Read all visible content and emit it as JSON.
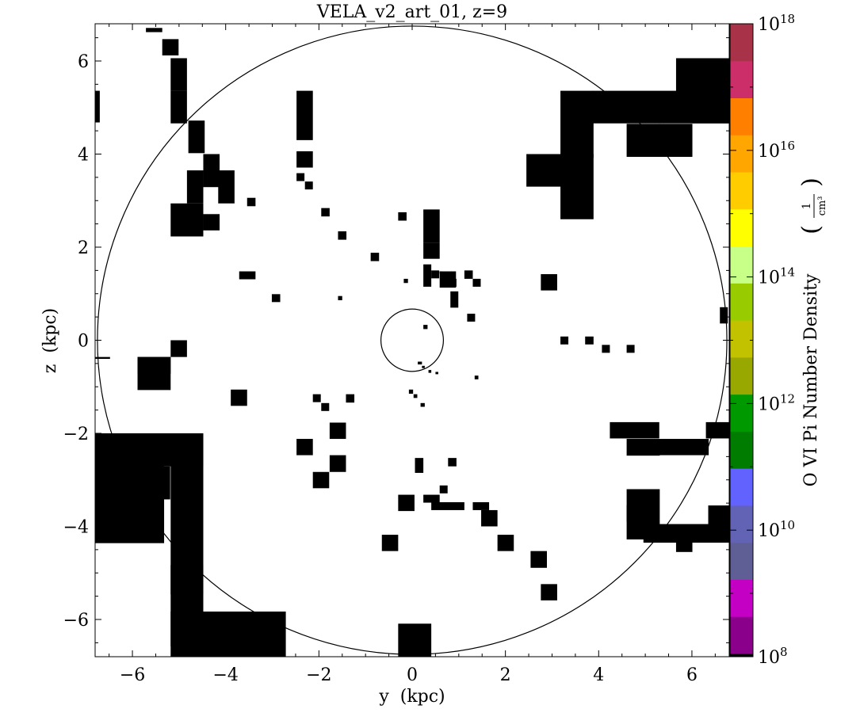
{
  "chart_data": {
    "type": "heatmap",
    "title": "VELA_v2_art_01, z=9",
    "xlabel": "y  (kpc)",
    "ylabel": "z  (kpc)",
    "xlim": [
      -6.8,
      6.8
    ],
    "ylim": [
      -6.8,
      6.8
    ],
    "xticks": [
      -6,
      -4,
      -2,
      0,
      2,
      4,
      6
    ],
    "yticks": [
      -6,
      -4,
      -2,
      0,
      2,
      4,
      6
    ],
    "xtick_labels": [
      "−6",
      "−4",
      "−2",
      "0",
      "2",
      "4",
      "6"
    ],
    "ytick_labels": [
      "−6",
      "−4",
      "−2",
      "0",
      "2",
      "4",
      "6"
    ],
    "colorbar": {
      "label": "O VI Pi Number Density",
      "unit_label": "1/cm³",
      "scale": "log",
      "range": [
        100000000.0,
        1e+18
      ],
      "tick_labels": [
        {
          "base": "10",
          "exp": "8",
          "value": 8
        },
        {
          "base": "10",
          "exp": "10",
          "value": 10
        },
        {
          "base": "10",
          "exp": "12",
          "value": 12
        },
        {
          "base": "10",
          "exp": "14",
          "value": 14
        },
        {
          "base": "10",
          "exp": "16",
          "value": 16
        },
        {
          "base": "10",
          "exp": "18",
          "value": 18
        }
      ],
      "colors": [
        "#000000",
        "#8a008a",
        "#c400c4",
        "#5f5f95",
        "#6363b5",
        "#6262ff",
        "#007d00",
        "#009900",
        "#99a800",
        "#c2c200",
        "#99cc00",
        "#c8ff88",
        "#ffff00",
        "#ffcc00",
        "#ffa600",
        "#ff7f00",
        "#cc2e6a",
        "#a83349"
      ]
    },
    "circles": [
      {
        "name": "outer",
        "cx": 0,
        "cy": 0,
        "r": 6.75
      },
      {
        "name": "inner",
        "cx": 0,
        "cy": 0,
        "r": 0.67
      }
    ],
    "cells": [
      [
        -5.71,
        6.71,
        0.35,
        0.09
      ],
      [
        -5.36,
        6.47,
        0.35,
        0.35
      ],
      [
        -5.18,
        6.06,
        0.35,
        0.7
      ],
      [
        -6.8,
        5.36,
        0.1,
        0.68
      ],
      [
        -5.18,
        5.36,
        0.35,
        0.7
      ],
      [
        -4.8,
        4.72,
        0.35,
        0.7
      ],
      [
        -4.48,
        4.0,
        0.35,
        0.71
      ],
      [
        -4.16,
        3.65,
        0.35,
        0.71
      ],
      [
        -4.83,
        3.65,
        0.35,
        0.71
      ],
      [
        -5.18,
        2.94,
        0.7,
        0.71
      ],
      [
        -4.48,
        2.71,
        0.35,
        0.35
      ],
      [
        -2.48,
        4.06,
        0.35,
        0.35
      ],
      [
        -2.48,
        5.36,
        0.35,
        1.06
      ],
      [
        -2.48,
        3.59,
        0.17,
        0.17
      ],
      [
        -2.3,
        3.41,
        0.17,
        0.17
      ],
      [
        -3.54,
        3.06,
        0.18,
        0.18
      ],
      [
        -1.95,
        2.84,
        0.18,
        0.18
      ],
      [
        -1.59,
        2.34,
        0.18,
        0.18
      ],
      [
        -0.89,
        1.88,
        0.18,
        0.18
      ],
      [
        0.24,
        2.81,
        0.35,
        0.71
      ],
      [
        0.24,
        2.1,
        0.35,
        0.35
      ],
      [
        0.24,
        1.63,
        0.17,
        0.48
      ],
      [
        0.59,
        1.48,
        0.35,
        0.35
      ],
      [
        1.12,
        1.5,
        0.18,
        0.18
      ],
      [
        -3.71,
        1.48,
        0.35,
        0.17
      ],
      [
        -3.01,
        0.99,
        0.18,
        0.17
      ],
      [
        -1.59,
        0.95,
        0.09,
        0.09
      ],
      [
        -0.18,
        1.32,
        0.09,
        0.09
      ],
      [
        -0.3,
        2.75,
        0.18,
        0.18
      ],
      [
        0.59,
        1.48,
        0.05,
        0.05
      ],
      [
        0.59,
        1.48,
        0.05,
        0.05
      ],
      [
        0.41,
        1.5,
        0.17,
        0.17
      ],
      [
        0.77,
        1.32,
        0.18,
        0.17
      ],
      [
        1.3,
        1.32,
        0.17,
        0.17
      ],
      [
        2.76,
        1.42,
        0.35,
        0.35
      ],
      [
        0.82,
        1.05,
        0.17,
        0.35
      ],
      [
        1.18,
        0.57,
        0.17,
        0.17
      ],
      [
        0.24,
        0.33,
        0.09,
        0.09
      ],
      [
        6.6,
        0.71,
        0.17,
        0.35
      ],
      [
        3.18,
        0.08,
        0.17,
        0.17
      ],
      [
        3.71,
        0.08,
        0.18,
        0.17
      ],
      [
        4.07,
        -0.1,
        0.17,
        0.17
      ],
      [
        4.6,
        -0.1,
        0.17,
        0.17
      ],
      [
        0.12,
        -0.46,
        0.09,
        0.06
      ],
      [
        0.21,
        -0.55,
        0.06,
        0.05
      ],
      [
        0.35,
        -0.64,
        0.06,
        0.06
      ],
      [
        0.5,
        -0.68,
        0.06,
        0.05
      ],
      [
        1.34,
        -0.76,
        0.08,
        0.08
      ],
      [
        -0.07,
        -1.06,
        0.09,
        0.09
      ],
      [
        0.03,
        -1.16,
        0.08,
        0.08
      ],
      [
        0.18,
        -1.35,
        0.09,
        0.08
      ],
      [
        -3.89,
        -1.06,
        0.35,
        0.35
      ],
      [
        -2.13,
        -1.16,
        0.17,
        0.17
      ],
      [
        -1.95,
        -1.35,
        0.17,
        0.17
      ],
      [
        -1.42,
        -1.16,
        0.18,
        0.18
      ],
      [
        -1.77,
        -1.77,
        0.35,
        0.35
      ],
      [
        -2.48,
        -2.12,
        0.35,
        0.35
      ],
      [
        -1.77,
        -2.47,
        0.35,
        0.36
      ],
      [
        -2.13,
        -2.83,
        0.35,
        0.35
      ],
      [
        0.06,
        -2.53,
        0.18,
        0.32
      ],
      [
        0.77,
        -2.53,
        0.18,
        0.18
      ],
      [
        0.59,
        -3.12,
        0.17,
        0.17
      ],
      [
        -0.3,
        -3.32,
        0.35,
        0.35
      ],
      [
        0.24,
        -3.32,
        0.35,
        0.17
      ],
      [
        0.41,
        -3.48,
        0.71,
        0.17
      ],
      [
        1.3,
        -3.48,
        0.35,
        0.17
      ],
      [
        1.48,
        -3.65,
        0.35,
        0.35
      ],
      [
        1.83,
        -4.18,
        0.35,
        0.35
      ],
      [
        -0.65,
        -4.18,
        0.35,
        0.35
      ],
      [
        2.54,
        -4.53,
        0.35,
        0.36
      ],
      [
        2.76,
        -5.24,
        0.35,
        0.35
      ],
      [
        6.3,
        -1.76,
        0.5,
        0.35
      ],
      [
        4.24,
        -1.76,
        1.06,
        0.35
      ],
      [
        4.6,
        -2.12,
        0.71,
        0.36
      ],
      [
        5.3,
        -2.12,
        1.06,
        0.35
      ],
      [
        4.6,
        -3.2,
        0.71,
        1.08
      ],
      [
        4.6,
        -3.55,
        0.35,
        0.35
      ],
      [
        6.35,
        -3.55,
        0.45,
        0.71
      ],
      [
        4.96,
        -3.95,
        1.84,
        0.4
      ],
      [
        5.66,
        -4.25,
        0.35,
        0.3
      ],
      [
        -6.8,
        -2.0,
        1.48,
        2.36
      ],
      [
        -6.8,
        -0.36,
        0.32,
        0.04
      ],
      [
        -5.89,
        -0.36,
        0.71,
        0.36
      ],
      [
        -5.89,
        -0.36,
        0.71,
        0.71
      ],
      [
        -5.18,
        0.0,
        0.35,
        0.36
      ],
      [
        -5.89,
        -2.71,
        0.7,
        0.71
      ],
      [
        -5.89,
        -2.0,
        1.41,
        0.71
      ],
      [
        -5.18,
        -2.0,
        0.7,
        4.2
      ],
      [
        -5.18,
        -4.83,
        0.7,
        0.63
      ],
      [
        -5.18,
        -5.83,
        2.47,
        1.0
      ],
      [
        -5.18,
        -6.2,
        1.41,
        0.38
      ],
      [
        -2.48,
        -6.8,
        1.41,
        1.06
      ],
      [
        -1.08,
        -6.8,
        0.71,
        0.71
      ],
      [
        -0.3,
        -6.8,
        0.71,
        0.71
      ],
      [
        -0.3,
        -6.09,
        0.71,
        0.71
      ],
      [
        0.41,
        -6.8,
        0.71,
        0.71
      ],
      [
        1.12,
        -6.8,
        0.35,
        0.35
      ],
      [
        6.8,
        6.8,
        0,
        0
      ],
      [
        2.45,
        4.0,
        1.41,
        0.7
      ],
      [
        3.18,
        4.0,
        0.71,
        1.4
      ],
      [
        3.18,
        5.36,
        0.71,
        1.44
      ],
      [
        3.88,
        5.36,
        2.92,
        0.7
      ],
      [
        4.6,
        4.65,
        0.71,
        0.71
      ],
      [
        5.3,
        4.65,
        0.71,
        0.71
      ],
      [
        5.66,
        5.36,
        1.14,
        0.0
      ],
      [
        5.66,
        6.06,
        1.14,
        0.74
      ],
      [
        6.01,
        5.36,
        0.79,
        0.7
      ],
      [
        6.67,
        5.71,
        0.13,
        0.35
      ]
    ]
  }
}
